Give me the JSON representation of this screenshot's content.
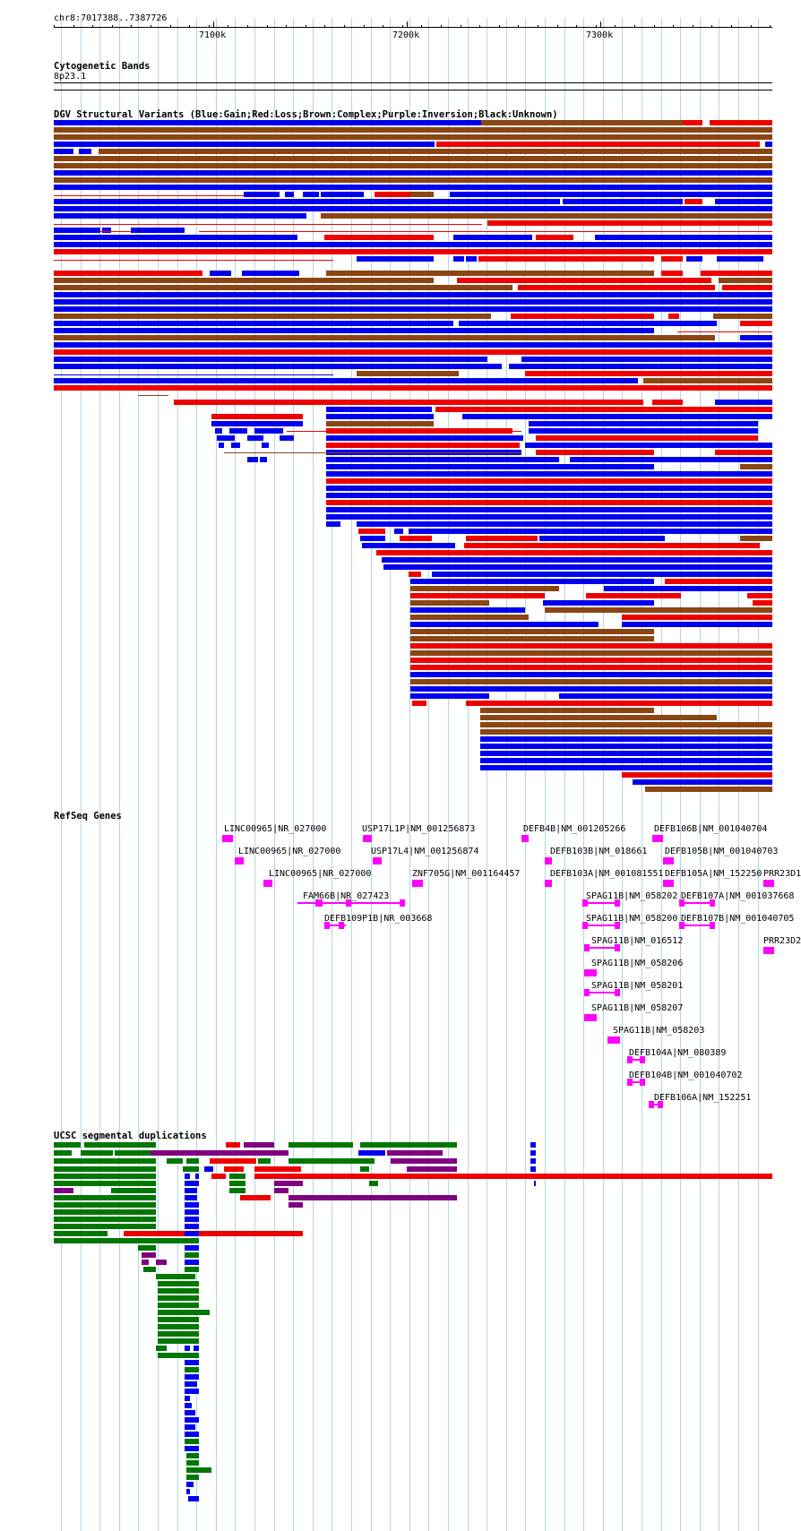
{
  "ruler": {
    "coord_label": "chr8:7017388..7387726",
    "ticks": [
      "7100k",
      "7200k",
      "7300k"
    ]
  },
  "tracks": {
    "cytoband": {
      "title": "Cytogenetic Bands",
      "band": "8p23.1"
    },
    "dgv": {
      "title": "DGV Structural Variants (Blue:Gain;Red:Loss;Brown:Complex;Purple:Inversion;Black:Unknown)"
    },
    "refseq": {
      "title": "RefSeq Genes"
    },
    "segdup": {
      "title": "UCSC segmental duplications"
    }
  },
  "colors": {
    "gain": "#0000ee",
    "loss": "#ee0000",
    "complex": "#8b4513",
    "inversion": "#800080",
    "unknown": "#000000",
    "gene": "#ff00ff",
    "segdup_green": "#007700",
    "segdup_blue": "#0000ee",
    "segdup_red": "#ee0000",
    "segdup_purple": "#800080",
    "gridline": "#add8e6"
  },
  "genes": [
    "LINC00965|NR_027000",
    "USP17L1P|NM_001256873",
    "DEFB4B|NM_001205266",
    "DEFB106B|NM_001040704",
    "LINC00965|NR_027000",
    "USP17L4|NM_001256874",
    "DEFB103B|NM_018661",
    "DEFB105B|NM_001040703",
    "LINC00965|NR_027000",
    "ZNF705G|NM_001164457",
    "DEFB103A|NM_001081551",
    "DEFB105A|NM_152250",
    "PRR23D1",
    "FAM66B|NR_027423",
    "SPAG11B|NM_058202",
    "DEFB107A|NM_001037668",
    "DEFB109P1B|NR_003668",
    "SPAG11B|NM_058200",
    "DEFB107B|NM_001040705",
    "SPAG11B|NM_016512",
    "PRR23D2",
    "SPAG11B|NM_058206",
    "SPAG11B|NM_058201",
    "SPAG11B|NM_058207",
    "SPAG11B|NM_058203",
    "DEFB104A|NM_080389",
    "DEFB104B|NM_001040702",
    "DEFB106A|NM_152251"
  ]
}
